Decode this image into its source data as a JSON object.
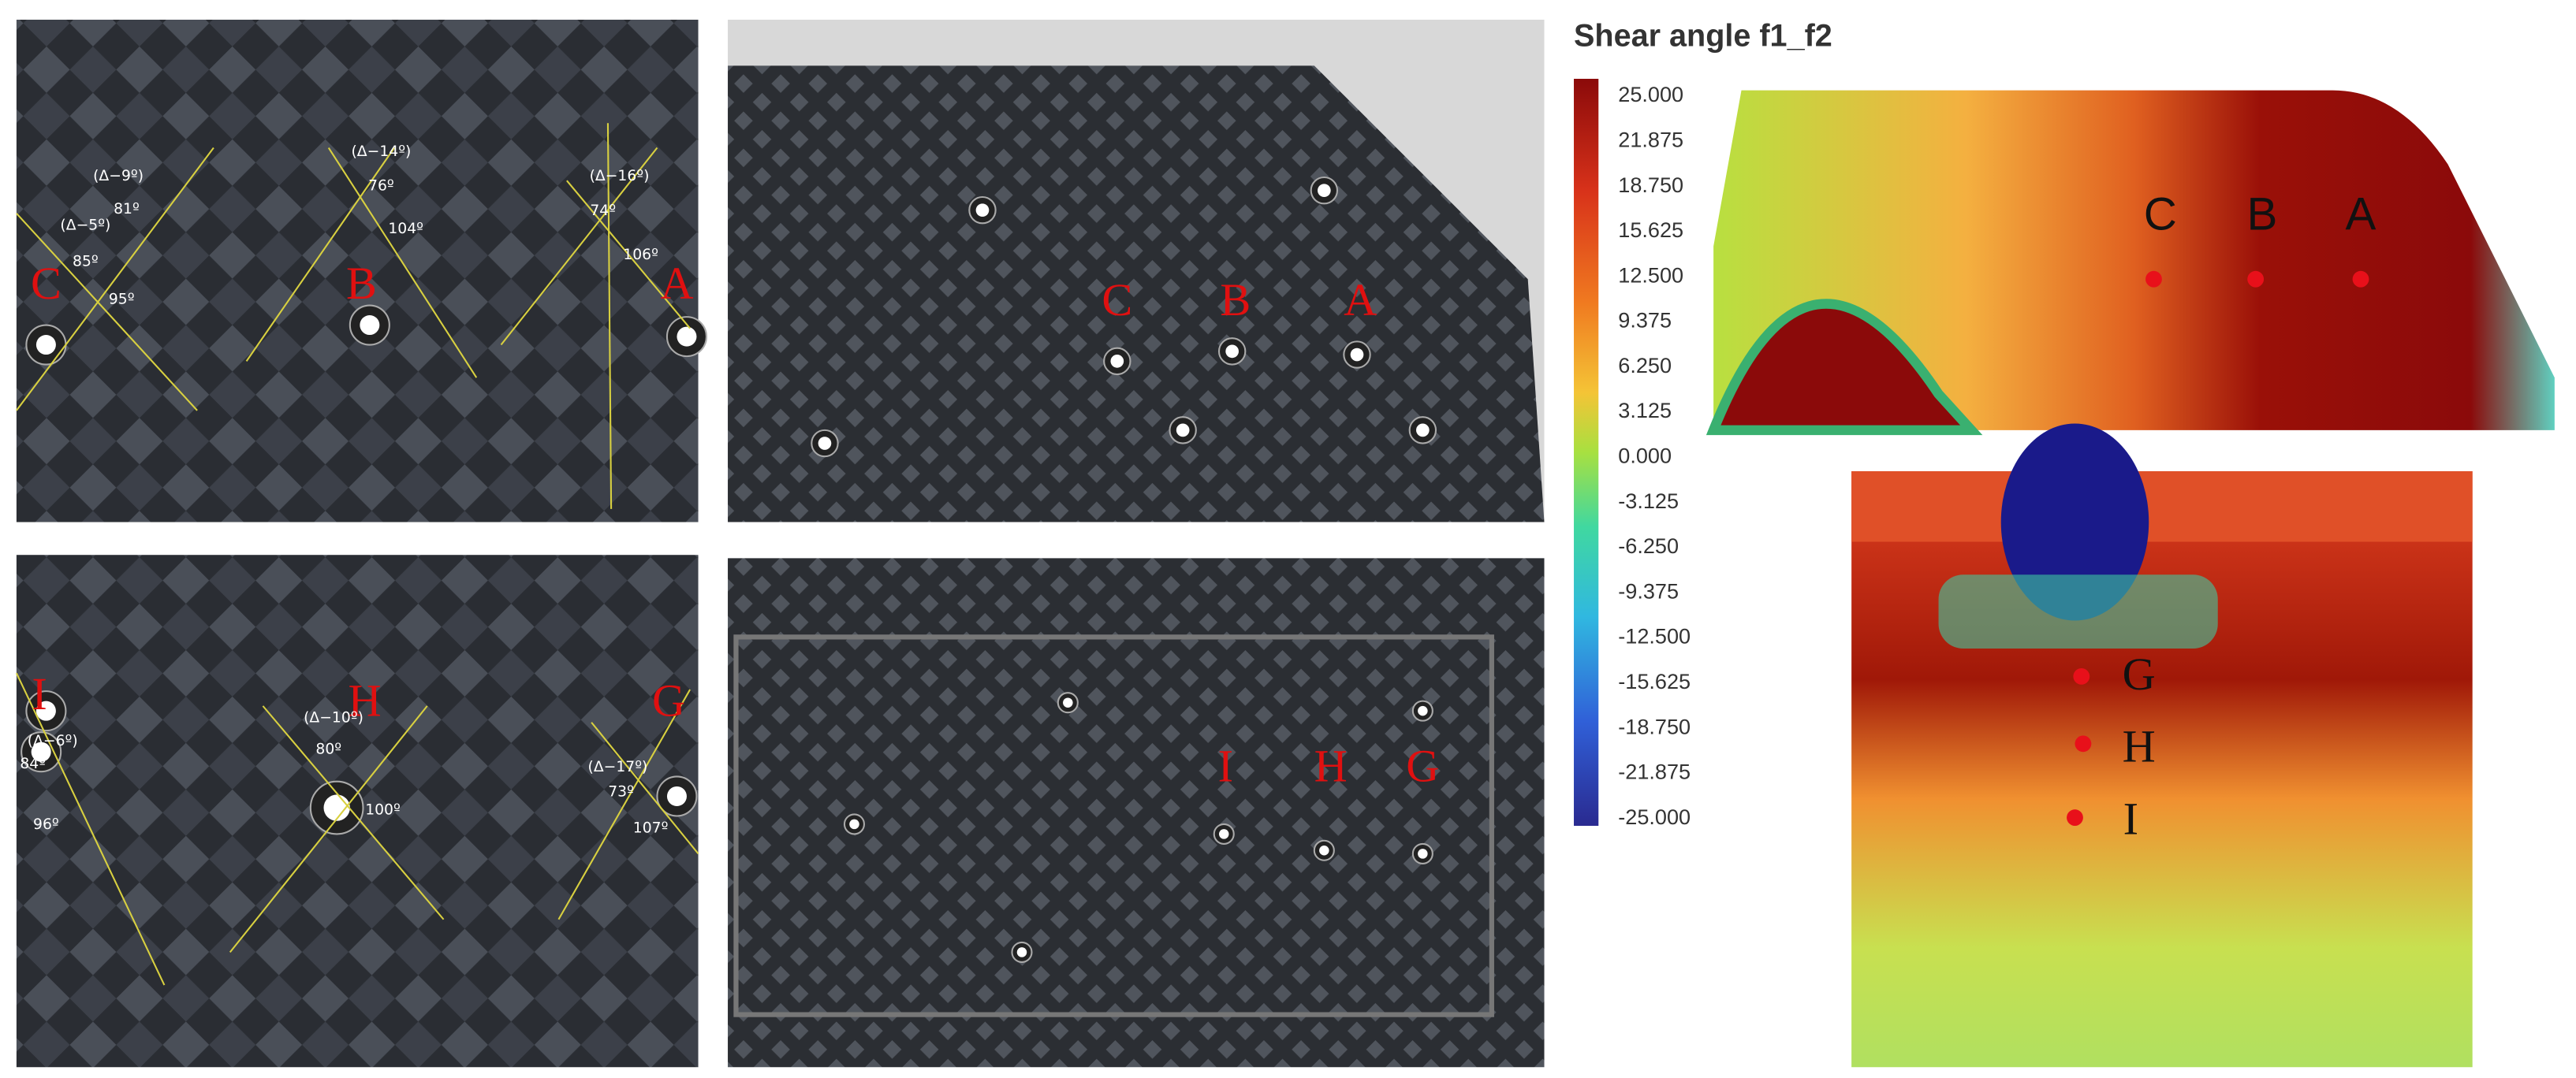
{
  "photo_top_closeup": {
    "labels": [
      "C",
      "B",
      "A"
    ],
    "annotations": [
      "(Δ−9º)",
      "81º",
      "(Δ−5º)",
      "85º",
      "95º",
      "(Δ−14º)",
      "76º",
      "104º",
      "(Δ−16º)",
      "74º",
      "106º"
    ]
  },
  "photo_top_overview": {
    "labels": [
      "C",
      "B",
      "A"
    ]
  },
  "photo_bottom_closeup": {
    "labels": [
      "I",
      "H",
      "G"
    ],
    "annotations": [
      "(Δ−6º)",
      "84º",
      "96º",
      "(Δ−10º)",
      "80º",
      "100º",
      "(Δ−17º)",
      "73º",
      "107º"
    ]
  },
  "photo_bottom_overview": {
    "labels": [
      "I",
      "H",
      "G"
    ]
  },
  "colorbar": {
    "title": "Shear angle f1_f2",
    "ticks": [
      "25.000",
      "21.875",
      "18.750",
      "15.625",
      "12.500",
      "9.375",
      "6.250",
      "3.125",
      "0.000",
      "-3.125",
      "-6.250",
      "-9.375",
      "-12.500",
      "-15.625",
      "-18.750",
      "-21.875",
      "-25.000"
    ]
  },
  "simulation_top": {
    "labels": [
      "C",
      "B",
      "A"
    ]
  },
  "simulation_bottom": {
    "labels": [
      "G",
      "H",
      "I"
    ]
  }
}
